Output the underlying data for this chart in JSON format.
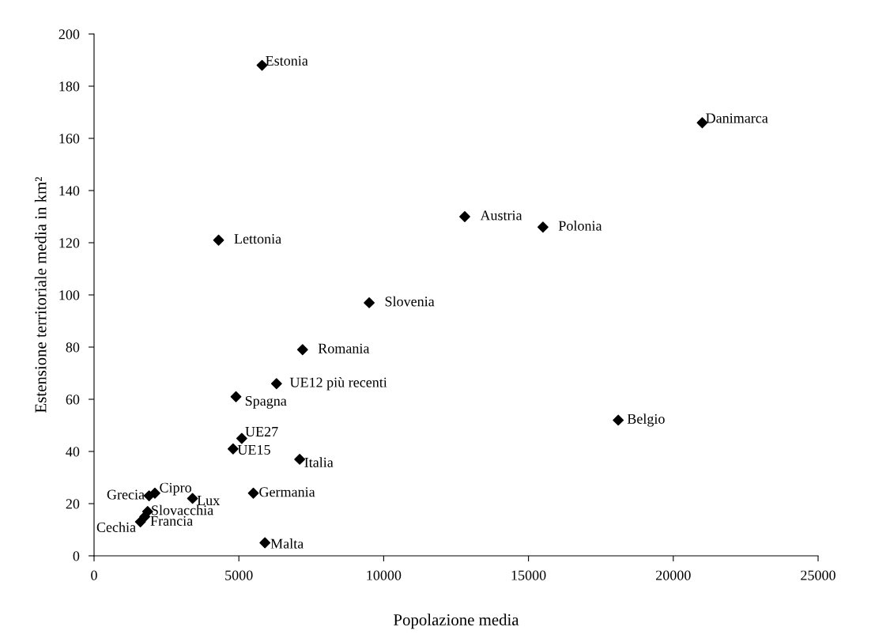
{
  "chart_data": {
    "type": "scatter",
    "xlabel": "Popolazione media",
    "ylabel": "Estensione territoriale media in km²",
    "x": [
      5800,
      21000,
      12800,
      15500,
      4300,
      9500,
      7200,
      6300,
      4900,
      18100,
      5100,
      4800,
      7100,
      5500,
      2100,
      1900,
      3400,
      1850,
      1750,
      1600,
      5900
    ],
    "series": [
      {
        "color": "#000000",
        "values": [
          188,
          166,
          130,
          126,
          121,
          97,
          79,
          66,
          61,
          52,
          45,
          41,
          37,
          24,
          24,
          23,
          22,
          17,
          15,
          13,
          5
        ]
      }
    ],
    "marker": "diamond",
    "grid": false,
    "legend": false,
    "xlim": [
      0,
      25000
    ],
    "xticks": [
      0,
      5000,
      10000,
      15000,
      20000,
      25000
    ],
    "ylim": [
      0,
      200
    ],
    "yticks": [
      0,
      20,
      40,
      60,
      80,
      100,
      120,
      140,
      160,
      180,
      200
    ],
    "annotations": [
      {
        "text": "Estonia",
        "x": 5800,
        "y": 188
      },
      {
        "text": "Danimarca",
        "x": 21000,
        "y": 166
      },
      {
        "text": "Austria",
        "x": 12800,
        "y": 130
      },
      {
        "text": "Polonia",
        "x": 15500,
        "y": 126
      },
      {
        "text": "Lettonia",
        "x": 4300,
        "y": 121
      },
      {
        "text": "Slovenia",
        "x": 9500,
        "y": 97
      },
      {
        "text": "Romania",
        "x": 7200,
        "y": 79
      },
      {
        "text": "UE12 più recenti",
        "x": 6300,
        "y": 66
      },
      {
        "text": "Spagna",
        "x": 4900,
        "y": 61
      },
      {
        "text": "Belgio",
        "x": 18100,
        "y": 52
      },
      {
        "text": "UE27",
        "x": 5100,
        "y": 45
      },
      {
        "text": "UE15",
        "x": 4800,
        "y": 41
      },
      {
        "text": "Italia",
        "x": 7100,
        "y": 37
      },
      {
        "text": "Germania",
        "x": 5500,
        "y": 24
      },
      {
        "text": "Cipro",
        "x": 2100,
        "y": 24
      },
      {
        "text": "Grecia",
        "x": 1900,
        "y": 23
      },
      {
        "text": "Lux",
        "x": 3400,
        "y": 22
      },
      {
        "text": "Slovacchia",
        "x": 1850,
        "y": 17
      },
      {
        "text": "Francia",
        "x": 1750,
        "y": 15
      },
      {
        "text": "Cechia",
        "x": 1600,
        "y": 13
      },
      {
        "text": "Malta",
        "x": 5900,
        "y": 5
      }
    ]
  }
}
